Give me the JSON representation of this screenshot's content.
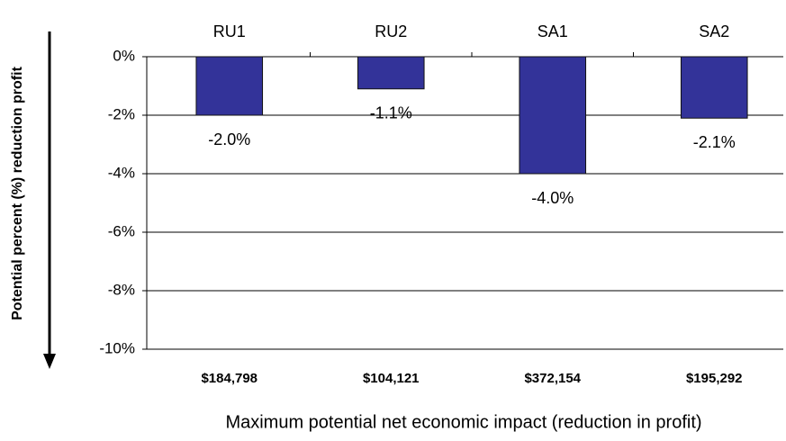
{
  "chart_data": {
    "type": "bar",
    "categories": [
      "RU1",
      "RU2",
      "SA1",
      "SA2"
    ],
    "impact_labels": [
      "$184,798",
      "$104,121",
      "$372,154",
      "$195,292"
    ],
    "values": [
      -2.0,
      -1.1,
      -4.0,
      -2.1
    ],
    "value_labels": [
      "-2.0%",
      "-1.1%",
      "-4.0%",
      "-2.1%"
    ],
    "color": "#333399",
    "ylim": [
      -10,
      0
    ],
    "yticks": [
      {
        "value": 0,
        "label": "0%"
      },
      {
        "value": -2,
        "label": "-2%"
      },
      {
        "value": -4,
        "label": "-4%"
      },
      {
        "value": -6,
        "label": "-6%"
      },
      {
        "value": -8,
        "label": "-8%"
      },
      {
        "value": -10,
        "label": "-10%"
      }
    ],
    "y_axis_label": "Potential percent (%) reduction profit",
    "x_axis_label": "Maximum potential net economic impact (reduction in profit)",
    "grid": true
  }
}
